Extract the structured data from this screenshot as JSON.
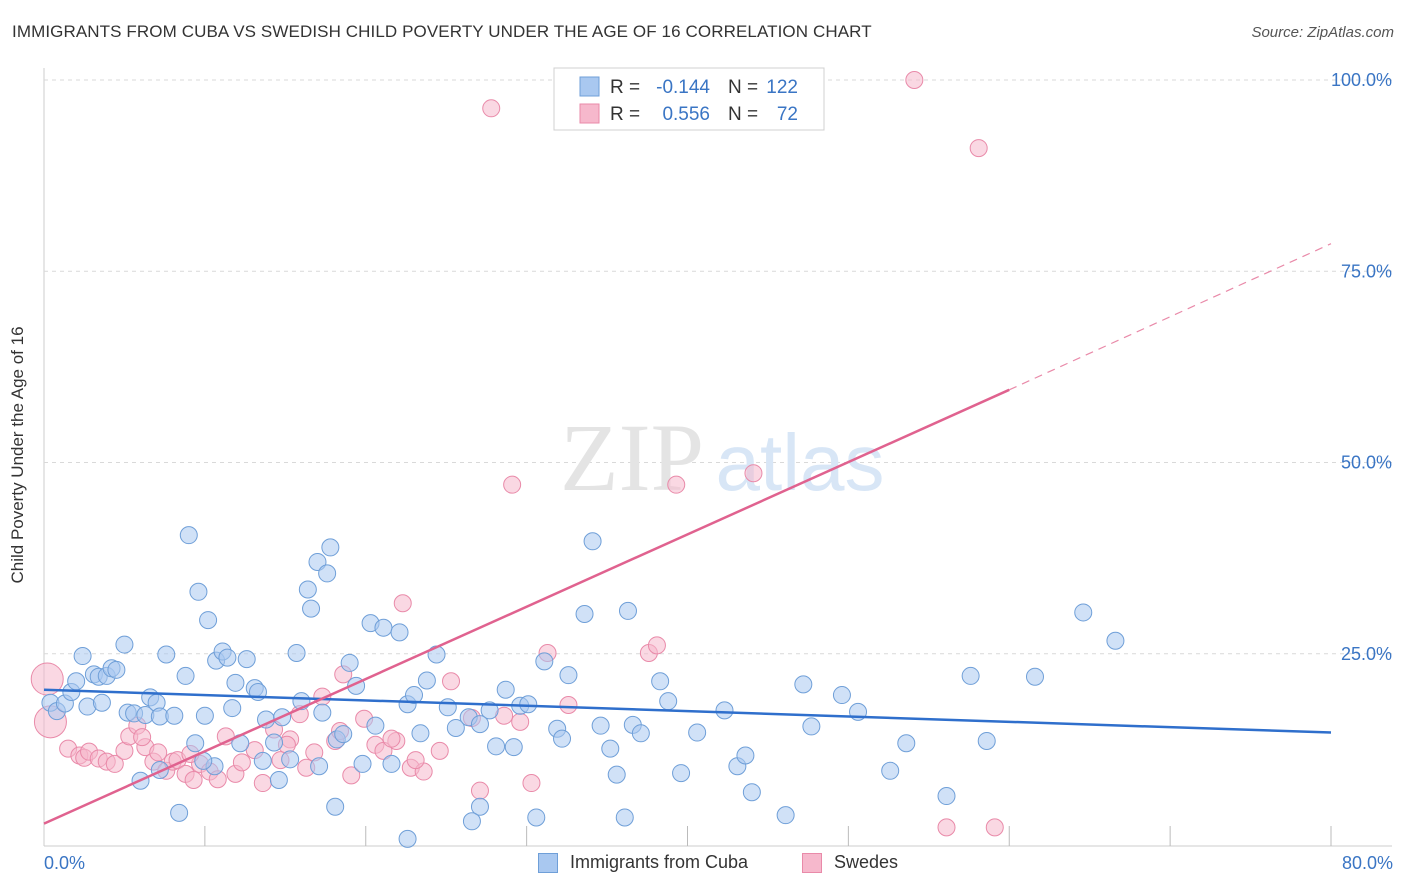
{
  "header": {
    "title": "IMMIGRANTS FROM CUBA VS SWEDISH CHILD POVERTY UNDER THE AGE OF 16 CORRELATION CHART",
    "source": "Source: ZipAtlas.com"
  },
  "watermark": {
    "zip": "ZIP",
    "atlas": "atlas"
  },
  "stats_legend": {
    "rows": [
      {
        "r_label": "R =",
        "r_value": "-0.144",
        "n_label": "N =",
        "n_value": "122"
      },
      {
        "r_label": "R =",
        "r_value": "0.556",
        "n_label": "N =",
        "n_value": "72"
      }
    ]
  },
  "colors": {
    "blue_fill": "#a9c8f0",
    "blue_stroke": "#6f9fd8",
    "blue_line": "#2f6fcc",
    "pink_fill": "#f6b8cc",
    "pink_stroke": "#e98aa9",
    "pink_line": "#e0628f",
    "axis_value": "#3a75c4",
    "grid": "#d9d9d9"
  },
  "chart_data": {
    "type": "scatter",
    "title": "IMMIGRANTS FROM CUBA VS SWEDISH CHILD POVERTY UNDER THE AGE OF 16 CORRELATION CHART",
    "xlabel": "",
    "ylabel": "Child Poverty Under the Age of 16",
    "xlim": [
      0,
      80
    ],
    "ylim": [
      0,
      100
    ],
    "x_tick_labels": [
      "0.0%",
      "80.0%"
    ],
    "y_tick_labels": [
      "25.0%",
      "50.0%",
      "75.0%",
      "100.0%"
    ],
    "y_ticks": [
      25,
      50,
      75,
      100
    ],
    "grid": true,
    "legend_placement": "bottom-center",
    "series": [
      {
        "name": "Immigrants from Cuba",
        "color": "#a9c8f0",
        "stroke": "#6f9fd8",
        "R": -0.144,
        "N": 122,
        "trend": {
          "x": [
            0,
            80
          ],
          "y": [
            20.3,
            14.7
          ]
        },
        "points": [
          [
            0.4,
            18.6
          ],
          [
            0.8,
            17.5
          ],
          [
            1.3,
            18.5
          ],
          [
            1.7,
            20.0
          ],
          [
            2.0,
            21.4
          ],
          [
            2.4,
            24.7
          ],
          [
            2.7,
            18.1
          ],
          [
            3.1,
            22.3
          ],
          [
            3.4,
            22.0
          ],
          [
            3.6,
            18.6
          ],
          [
            3.9,
            22.1
          ],
          [
            4.2,
            23.1
          ],
          [
            4.5,
            22.9
          ],
          [
            5.0,
            26.2
          ],
          [
            5.2,
            17.3
          ],
          [
            5.6,
            17.2
          ],
          [
            6.0,
            8.4
          ],
          [
            6.3,
            17.0
          ],
          [
            6.6,
            19.3
          ],
          [
            7.0,
            18.6
          ],
          [
            7.2,
            16.8
          ],
          [
            7.6,
            24.9
          ],
          [
            8.1,
            16.9
          ],
          [
            8.4,
            4.2
          ],
          [
            8.8,
            22.1
          ],
          [
            9.0,
            40.5
          ],
          [
            9.4,
            13.3
          ],
          [
            9.6,
            33.1
          ],
          [
            10.0,
            16.9
          ],
          [
            10.2,
            29.4
          ],
          [
            10.7,
            24.1
          ],
          [
            11.1,
            25.3
          ],
          [
            11.4,
            24.5
          ],
          [
            11.7,
            17.9
          ],
          [
            11.9,
            21.2
          ],
          [
            12.2,
            13.3
          ],
          [
            12.6,
            24.3
          ],
          [
            13.1,
            20.5
          ],
          [
            13.3,
            20.0
          ],
          [
            13.6,
            11.0
          ],
          [
            13.8,
            16.4
          ],
          [
            14.3,
            13.4
          ],
          [
            14.6,
            8.5
          ],
          [
            14.8,
            16.7
          ],
          [
            15.3,
            11.2
          ],
          [
            15.7,
            25.1
          ],
          [
            16.0,
            18.8
          ],
          [
            16.4,
            33.4
          ],
          [
            16.6,
            30.9
          ],
          [
            17.0,
            37.0
          ],
          [
            17.3,
            17.3
          ],
          [
            17.6,
            35.5
          ],
          [
            17.8,
            38.9
          ],
          [
            18.2,
            13.8
          ],
          [
            18.6,
            14.5
          ],
          [
            19.0,
            23.8
          ],
          [
            19.4,
            20.8
          ],
          [
            19.8,
            10.6
          ],
          [
            20.3,
            29.0
          ],
          [
            20.6,
            15.6
          ],
          [
            21.1,
            28.4
          ],
          [
            21.6,
            10.6
          ],
          [
            22.1,
            27.8
          ],
          [
            22.6,
            18.4
          ],
          [
            23.0,
            19.6
          ],
          [
            23.4,
            14.6
          ],
          [
            23.8,
            21.5
          ],
          [
            24.4,
            24.9
          ],
          [
            25.1,
            18.0
          ],
          [
            25.6,
            15.3
          ],
          [
            26.4,
            16.7
          ],
          [
            27.1,
            5.0
          ],
          [
            27.7,
            17.6
          ],
          [
            28.1,
            12.9
          ],
          [
            28.7,
            20.3
          ],
          [
            29.2,
            12.8
          ],
          [
            29.6,
            18.2
          ],
          [
            30.6,
            3.6
          ],
          [
            31.1,
            24.0
          ],
          [
            31.9,
            15.2
          ],
          [
            32.2,
            13.9
          ],
          [
            32.6,
            22.2
          ],
          [
            33.6,
            30.2
          ],
          [
            34.1,
            39.7
          ],
          [
            34.6,
            15.6
          ],
          [
            35.2,
            12.6
          ],
          [
            35.6,
            9.2
          ],
          [
            36.3,
            30.6
          ],
          [
            36.6,
            15.7
          ],
          [
            37.1,
            14.6
          ],
          [
            38.3,
            21.4
          ],
          [
            38.8,
            18.8
          ],
          [
            39.6,
            9.4
          ],
          [
            40.6,
            14.7
          ],
          [
            42.3,
            17.6
          ],
          [
            43.1,
            10.3
          ],
          [
            43.6,
            11.7
          ],
          [
            44.0,
            6.9
          ],
          [
            47.2,
            21.0
          ],
          [
            47.7,
            15.5
          ],
          [
            49.6,
            19.6
          ],
          [
            50.6,
            17.4
          ],
          [
            52.6,
            9.7
          ],
          [
            53.6,
            13.3
          ],
          [
            56.1,
            6.4
          ],
          [
            57.6,
            22.1
          ],
          [
            61.6,
            22.0
          ],
          [
            64.6,
            30.4
          ],
          [
            66.6,
            26.7
          ],
          [
            58.6,
            13.6
          ],
          [
            46.1,
            3.9
          ],
          [
            36.1,
            3.6
          ],
          [
            30.1,
            18.4
          ],
          [
            27.1,
            15.8
          ],
          [
            26.6,
            3.1
          ],
          [
            18.1,
            5.0
          ],
          [
            17.1,
            10.3
          ],
          [
            22.6,
            0.8
          ],
          [
            10.6,
            10.3
          ],
          [
            9.9,
            11.0
          ],
          [
            7.2,
            9.8
          ]
        ]
      },
      {
        "name": "Swedes",
        "color": "#f6b8cc",
        "stroke": "#e98aa9",
        "R": 0.556,
        "N": 72,
        "trend": {
          "x": [
            0,
            60
          ],
          "y": [
            2.8,
            59.5
          ]
        },
        "trend_dashed": {
          "x": [
            60,
            80
          ],
          "y": [
            59.5,
            78.6
          ]
        },
        "points": [
          [
            0.2,
            21.7
          ],
          [
            0.4,
            16.1
          ],
          [
            1.5,
            12.6
          ],
          [
            2.2,
            11.7
          ],
          [
            2.5,
            11.4
          ],
          [
            2.8,
            12.2
          ],
          [
            3.4,
            11.3
          ],
          [
            3.9,
            10.9
          ],
          [
            4.4,
            10.6
          ],
          [
            5.0,
            12.3
          ],
          [
            5.3,
            14.2
          ],
          [
            5.8,
            15.6
          ],
          [
            6.3,
            12.8
          ],
          [
            6.8,
            10.9
          ],
          [
            7.1,
            12.1
          ],
          [
            7.6,
            9.7
          ],
          [
            8.0,
            10.9
          ],
          [
            8.3,
            11.1
          ],
          [
            8.8,
            9.3
          ],
          [
            9.3,
            8.5
          ],
          [
            9.7,
            10.6
          ],
          [
            10.3,
            9.6
          ],
          [
            10.8,
            8.6
          ],
          [
            11.3,
            14.2
          ],
          [
            11.9,
            9.3
          ],
          [
            12.3,
            10.8
          ],
          [
            13.1,
            12.4
          ],
          [
            13.6,
            8.1
          ],
          [
            14.3,
            15.1
          ],
          [
            14.7,
            11.1
          ],
          [
            15.3,
            13.8
          ],
          [
            15.9,
            17.1
          ],
          [
            16.3,
            10.1
          ],
          [
            16.8,
            12.1
          ],
          [
            17.3,
            19.4
          ],
          [
            18.1,
            13.6
          ],
          [
            18.4,
            14.9
          ],
          [
            19.1,
            9.1
          ],
          [
            19.9,
            16.5
          ],
          [
            20.6,
            13.1
          ],
          [
            21.1,
            12.3
          ],
          [
            21.9,
            13.6
          ],
          [
            22.3,
            31.6
          ],
          [
            22.8,
            10.1
          ],
          [
            23.6,
            9.6
          ],
          [
            24.6,
            12.3
          ],
          [
            25.3,
            21.4
          ],
          [
            26.6,
            16.6
          ],
          [
            27.1,
            7.1
          ],
          [
            27.8,
            96.3
          ],
          [
            28.6,
            16.9
          ],
          [
            29.1,
            47.1
          ],
          [
            29.6,
            16.1
          ],
          [
            30.3,
            8.1
          ],
          [
            31.3,
            25.1
          ],
          [
            32.6,
            18.3
          ],
          [
            34.3,
            100.0
          ],
          [
            37.6,
            25.1
          ],
          [
            38.1,
            26.1
          ],
          [
            39.3,
            47.1
          ],
          [
            42.6,
            100.0
          ],
          [
            44.1,
            48.6
          ],
          [
            54.1,
            100.0
          ],
          [
            58.1,
            91.1
          ],
          [
            56.1,
            2.3
          ],
          [
            59.1,
            2.3
          ],
          [
            21.6,
            13.9
          ],
          [
            23.1,
            11.1
          ],
          [
            18.6,
            22.3
          ],
          [
            15.1,
            13.1
          ],
          [
            9.1,
            11.9
          ],
          [
            6.1,
            14.1
          ]
        ]
      }
    ]
  },
  "bottom_legend": {
    "items": [
      {
        "label": "Immigrants from Cuba"
      },
      {
        "label": "Swedes"
      }
    ]
  }
}
